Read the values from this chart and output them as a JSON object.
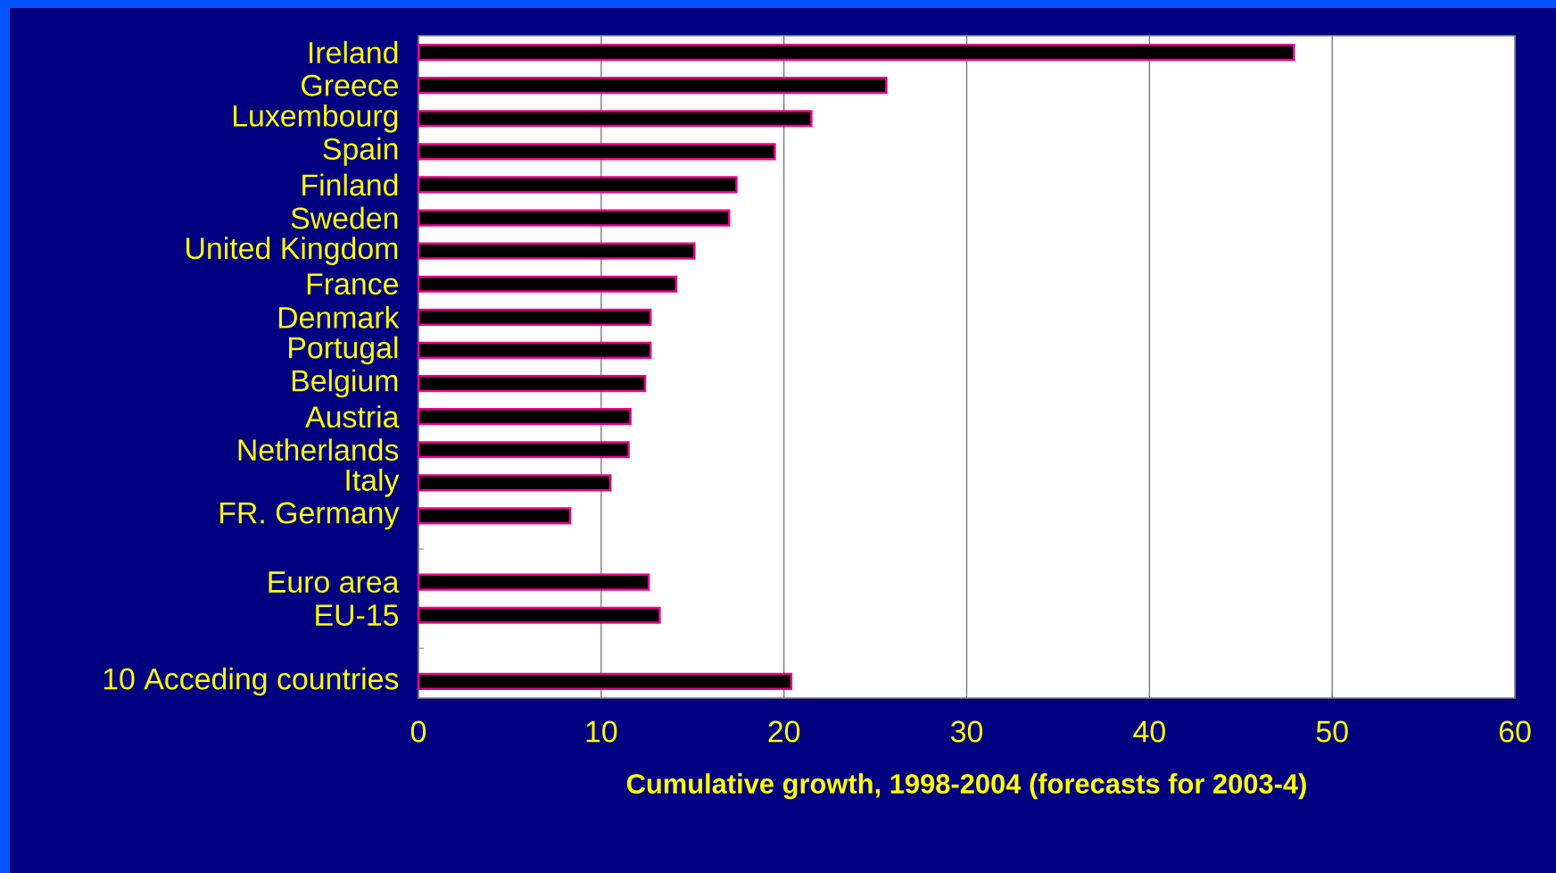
{
  "chart_data": {
    "type": "bar",
    "orientation": "horizontal",
    "categories": [
      "Ireland",
      "Greece",
      "Luxembourg",
      "Spain",
      "Finland",
      "Sweden",
      "United Kingdom",
      "France",
      "Denmark",
      "Portugal",
      "Belgium",
      "Austria",
      "Netherlands",
      "Italy",
      "FR. Germany",
      null,
      "Euro area",
      "EU-15",
      null,
      "10 Acceding countries"
    ],
    "values": [
      47.9,
      25.6,
      21.5,
      19.5,
      17.4,
      17.0,
      15.1,
      14.1,
      12.7,
      12.7,
      12.4,
      11.6,
      11.5,
      10.5,
      8.3,
      null,
      12.6,
      13.2,
      null,
      20.4
    ],
    "color": "#000000",
    "xlabel": "Cumulative growth, 1998-2004 (forecasts for 2003-4)",
    "xlim": [
      0,
      60
    ],
    "xticks": [
      0,
      10,
      20,
      30,
      40,
      50,
      60
    ],
    "grid": "x"
  }
}
